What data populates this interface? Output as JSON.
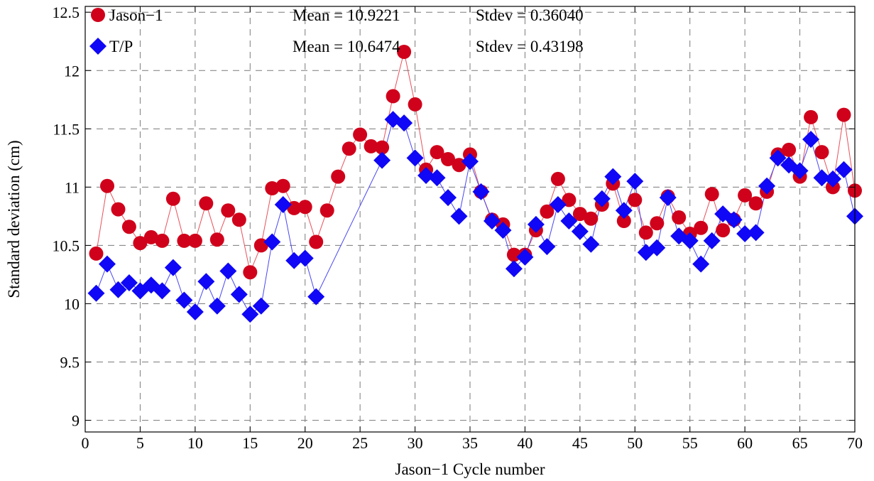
{
  "chart_data": {
    "type": "scatter",
    "title": "",
    "xlabel": "Jason−1 Cycle number",
    "ylabel": "Standard deviation (cm)",
    "xlim": [
      0,
      70
    ],
    "ylim": [
      8.9,
      12.55
    ],
    "xticks": [
      0,
      5,
      10,
      15,
      20,
      25,
      30,
      35,
      40,
      45,
      50,
      55,
      60,
      65,
      70
    ],
    "yticks": [
      9,
      9.5,
      10,
      10.5,
      11,
      11.5,
      12,
      12.5
    ],
    "xtick_labels": [
      "0",
      "5",
      "10",
      "15",
      "20",
      "25",
      "30",
      "35",
      "40",
      "45",
      "50",
      "55",
      "60",
      "65",
      "70"
    ],
    "ytick_labels": [
      "9",
      "9.5",
      "10",
      "10.5",
      "11",
      "11.5",
      "12",
      "12.5"
    ],
    "grid": true,
    "legend_position": "top-left",
    "series": [
      {
        "name": "Jason−1",
        "marker": "circle",
        "color": "#d0021b",
        "line_color": "#e8505b",
        "stats": {
          "mean": "Mean = 10.9221",
          "stdev": "Stdev = 0.36040"
        },
        "points": [
          [
            1,
            10.43
          ],
          [
            2,
            11.01
          ],
          [
            3,
            10.81
          ],
          [
            4,
            10.66
          ],
          [
            5,
            10.52
          ],
          [
            6,
            10.57
          ],
          [
            7,
            10.54
          ],
          [
            8,
            10.9
          ],
          [
            9,
            10.54
          ],
          [
            10,
            10.54
          ],
          [
            11,
            10.86
          ],
          [
            12,
            10.55
          ],
          [
            13,
            10.8
          ],
          [
            14,
            10.72
          ],
          [
            15,
            10.27
          ],
          [
            16,
            10.5
          ],
          [
            17,
            10.99
          ],
          [
            18,
            11.01
          ],
          [
            19,
            10.82
          ],
          [
            20,
            10.83
          ],
          [
            21,
            10.53
          ],
          [
            22,
            10.8
          ],
          [
            23,
            11.09
          ],
          [
            24,
            11.33
          ],
          [
            25,
            11.45
          ],
          [
            26,
            11.35
          ],
          [
            27,
            11.34
          ],
          [
            28,
            11.78
          ],
          [
            29,
            12.16
          ],
          [
            30,
            11.71
          ],
          [
            31,
            11.15
          ],
          [
            32,
            11.3
          ],
          [
            33,
            11.24
          ],
          [
            34,
            11.19
          ],
          [
            35,
            11.28
          ],
          [
            36,
            10.96
          ],
          [
            37,
            10.72
          ],
          [
            38,
            10.68
          ],
          [
            39,
            10.42
          ],
          [
            40,
            10.42
          ],
          [
            41,
            10.63
          ],
          [
            42,
            10.79
          ],
          [
            43,
            11.07
          ],
          [
            44,
            10.89
          ],
          [
            45,
            10.77
          ],
          [
            46,
            10.73
          ],
          [
            47,
            10.85
          ],
          [
            48,
            11.03
          ],
          [
            49,
            10.71
          ],
          [
            50,
            10.89
          ],
          [
            51,
            10.61
          ],
          [
            52,
            10.69
          ],
          [
            53,
            10.92
          ],
          [
            54,
            10.74
          ],
          [
            55,
            10.6
          ],
          [
            56,
            10.65
          ],
          [
            57,
            10.94
          ],
          [
            58,
            10.63
          ],
          [
            59,
            10.72
          ],
          [
            60,
            10.93
          ],
          [
            61,
            10.86
          ],
          [
            62,
            10.96
          ],
          [
            63,
            11.28
          ],
          [
            64,
            11.32
          ],
          [
            65,
            11.09
          ],
          [
            66,
            11.6
          ],
          [
            67,
            11.3
          ],
          [
            68,
            11.0
          ],
          [
            69,
            11.62
          ],
          [
            70,
            10.97
          ]
        ]
      },
      {
        "name": "T/P",
        "marker": "diamond",
        "color": "#0f07f5",
        "line_color": "#4a46f2",
        "stats": {
          "mean": "Mean = 10.6474",
          "stdev": "Stdev = 0.43198"
        },
        "points": [
          [
            1,
            10.09
          ],
          [
            2,
            10.34
          ],
          [
            3,
            10.12
          ],
          [
            4,
            10.18
          ],
          [
            5,
            10.11
          ],
          [
            6,
            10.16
          ],
          [
            7,
            10.11
          ],
          [
            8,
            10.31
          ],
          [
            9,
            10.03
          ],
          [
            10,
            9.93
          ],
          [
            11,
            10.19
          ],
          [
            12,
            9.98
          ],
          [
            13,
            10.28
          ],
          [
            14,
            10.08
          ],
          [
            15,
            9.91
          ],
          [
            16,
            9.98
          ],
          [
            17,
            10.53
          ],
          [
            18,
            10.85
          ],
          [
            19,
            10.37
          ],
          [
            20,
            10.39
          ],
          [
            21,
            10.06
          ],
          [
            27,
            11.23
          ],
          [
            28,
            11.58
          ],
          [
            29,
            11.55
          ],
          [
            30,
            11.25
          ],
          [
            31,
            11.1
          ],
          [
            32,
            11.08
          ],
          [
            33,
            10.91
          ],
          [
            34,
            10.75
          ],
          [
            35,
            11.22
          ],
          [
            36,
            10.96
          ],
          [
            37,
            10.71
          ],
          [
            38,
            10.63
          ],
          [
            39,
            10.3
          ],
          [
            40,
            10.4
          ],
          [
            41,
            10.68
          ],
          [
            42,
            10.49
          ],
          [
            43,
            10.85
          ],
          [
            44,
            10.71
          ],
          [
            45,
            10.62
          ],
          [
            46,
            10.51
          ],
          [
            47,
            10.9
          ],
          [
            48,
            11.09
          ],
          [
            49,
            10.8
          ],
          [
            50,
            11.05
          ],
          [
            51,
            10.44
          ],
          [
            52,
            10.48
          ],
          [
            53,
            10.91
          ],
          [
            54,
            10.58
          ],
          [
            55,
            10.54
          ],
          [
            56,
            10.34
          ],
          [
            57,
            10.54
          ],
          [
            58,
            10.77
          ],
          [
            59,
            10.72
          ],
          [
            60,
            10.6
          ],
          [
            61,
            10.61
          ],
          [
            62,
            11.01
          ],
          [
            63,
            11.25
          ],
          [
            64,
            11.19
          ],
          [
            65,
            11.14
          ],
          [
            66,
            11.41
          ],
          [
            67,
            11.08
          ],
          [
            68,
            11.07
          ],
          [
            69,
            11.15
          ],
          [
            70,
            10.75
          ]
        ]
      }
    ]
  }
}
